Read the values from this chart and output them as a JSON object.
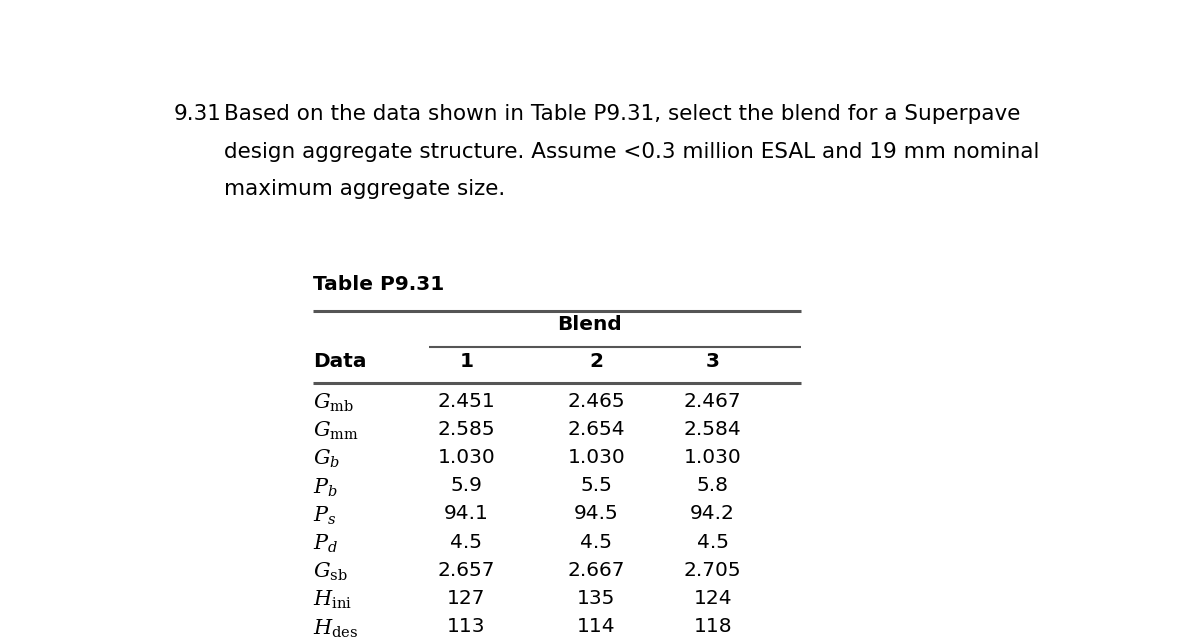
{
  "problem_number": "9.31",
  "intro_lines": [
    "Based on the data shown in Table P9.31, select the blend for a Superpave",
    "design aggregate structure. Assume <0.3 million ESAL and 19 mm nominal",
    "maximum aggregate size."
  ],
  "table_title": "Table P9.31",
  "blend_header": "Blend",
  "col_headers": [
    "Data",
    "1",
    "2",
    "3"
  ],
  "row_labels_math": [
    "$G_{\\mathrm{mb}}$",
    "$G_{\\mathrm{mm}}$",
    "$G_b$",
    "$P_b$",
    "$P_s$",
    "$P_d$",
    "$G_{\\mathrm{sb}}$",
    "$H_{\\mathrm{ini}}$",
    "$H_{\\mathrm{des}}$"
  ],
  "values": [
    [
      "2.451",
      "2.465",
      "2.467"
    ],
    [
      "2.585",
      "2.654",
      "2.584"
    ],
    [
      "1.030",
      "1.030",
      "1.030"
    ],
    [
      "5.9",
      "5.5",
      "5.8"
    ],
    [
      "94.1",
      "94.5",
      "94.2"
    ],
    [
      "4.5",
      "4.5",
      "4.5"
    ],
    [
      "2.657",
      "2.667",
      "2.705"
    ],
    [
      "127",
      "135",
      "124"
    ],
    [
      "113",
      "114",
      "118"
    ]
  ],
  "bg_color": "#ffffff",
  "text_color": "#000000",
  "line_color": "#555555",
  "fig_width": 12.0,
  "fig_height": 6.43,
  "fontsize_intro": 15.5,
  "fontsize_table": 14.5,
  "fontsize_math": 15
}
